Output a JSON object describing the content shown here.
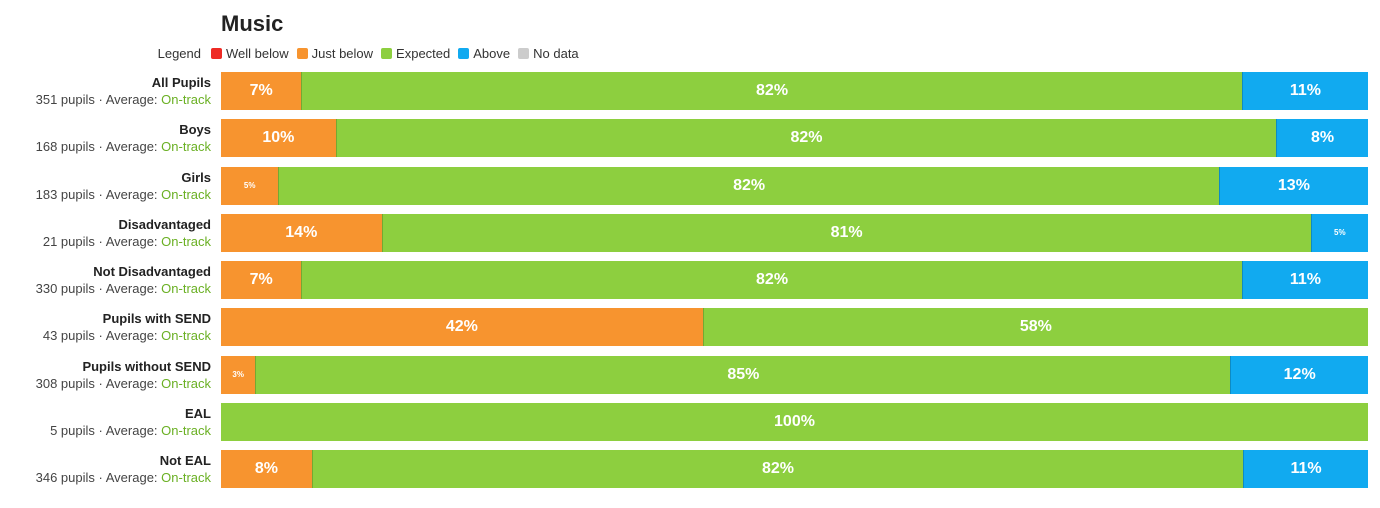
{
  "chart_data": {
    "type": "bar",
    "title": "Music",
    "legend": {
      "label": "Legend",
      "placement": "top-left",
      "items": [
        {
          "name": "Well below",
          "color": "#ee2a24"
        },
        {
          "name": "Just below",
          "color": "#f7942f"
        },
        {
          "name": "Expected",
          "color": "#8dcf3f"
        },
        {
          "name": "Above",
          "color": "#11aaf0"
        },
        {
          "name": "No data",
          "color": "#cccccc"
        }
      ]
    },
    "rows": [
      {
        "name": "All Pupils",
        "pupils": "351 pupils",
        "average_prefix": "Average:",
        "average": "On-track",
        "segments": [
          {
            "category": "Just below",
            "value": 7,
            "label": "7%"
          },
          {
            "category": "Expected",
            "value": 82,
            "label": "82%"
          },
          {
            "category": "Above",
            "value": 11,
            "label": "11%"
          }
        ]
      },
      {
        "name": "Boys",
        "pupils": "168 pupils",
        "average_prefix": "Average:",
        "average": "On-track",
        "segments": [
          {
            "category": "Just below",
            "value": 10,
            "label": "10%"
          },
          {
            "category": "Expected",
            "value": 82,
            "label": "82%"
          },
          {
            "category": "Above",
            "value": 8,
            "label": "8%"
          }
        ]
      },
      {
        "name": "Girls",
        "pupils": "183 pupils",
        "average_prefix": "Average:",
        "average": "On-track",
        "segments": [
          {
            "category": "Just below",
            "value": 5,
            "label": "5%"
          },
          {
            "category": "Expected",
            "value": 82,
            "label": "82%"
          },
          {
            "category": "Above",
            "value": 13,
            "label": "13%"
          }
        ]
      },
      {
        "name": "Disadvantaged",
        "pupils": "21 pupils",
        "average_prefix": "Average:",
        "average": "On-track",
        "segments": [
          {
            "category": "Just below",
            "value": 14,
            "label": "14%"
          },
          {
            "category": "Expected",
            "value": 81,
            "label": "81%"
          },
          {
            "category": "Above",
            "value": 5,
            "label": "5%"
          }
        ]
      },
      {
        "name": "Not Disadvantaged",
        "pupils": "330 pupils",
        "average_prefix": "Average:",
        "average": "On-track",
        "segments": [
          {
            "category": "Just below",
            "value": 7,
            "label": "7%"
          },
          {
            "category": "Expected",
            "value": 82,
            "label": "82%"
          },
          {
            "category": "Above",
            "value": 11,
            "label": "11%"
          }
        ]
      },
      {
        "name": "Pupils with SEND",
        "pupils": "43 pupils",
        "average_prefix": "Average:",
        "average": "On-track",
        "segments": [
          {
            "category": "Just below",
            "value": 42,
            "label": "42%"
          },
          {
            "category": "Expected",
            "value": 58,
            "label": "58%"
          }
        ]
      },
      {
        "name": "Pupils without SEND",
        "pupils": "308 pupils",
        "average_prefix": "Average:",
        "average": "On-track",
        "segments": [
          {
            "category": "Just below",
            "value": 3,
            "label": "3%"
          },
          {
            "category": "Expected",
            "value": 85,
            "label": "85%"
          },
          {
            "category": "Above",
            "value": 12,
            "label": "12%"
          }
        ]
      },
      {
        "name": "EAL",
        "pupils": "5 pupils",
        "average_prefix": "Average:",
        "average": "On-track",
        "segments": [
          {
            "category": "Expected",
            "value": 100,
            "label": "100%"
          }
        ]
      },
      {
        "name": "Not EAL",
        "pupils": "346 pupils",
        "average_prefix": "Average:",
        "average": "On-track",
        "segments": [
          {
            "category": "Just below",
            "value": 8,
            "label": "8%"
          },
          {
            "category": "Expected",
            "value": 82,
            "label": "82%"
          },
          {
            "category": "Above",
            "value": 11,
            "label": "11%"
          }
        ]
      }
    ],
    "xlim": [
      0,
      100
    ],
    "grid": false
  }
}
